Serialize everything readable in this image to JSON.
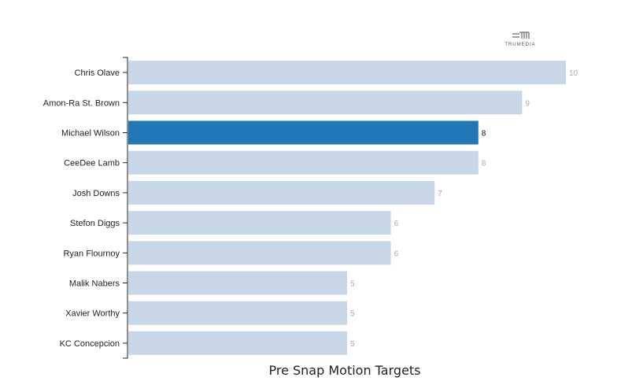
{
  "chart_data": {
    "type": "bar",
    "orientation": "horizontal",
    "title": "",
    "xlabel": "Pre Snap Motion Targets",
    "ylabel": "",
    "categories": [
      "Chris Olave",
      "Amon-Ra St. Brown",
      "Michael Wilson",
      "CeeDee Lamb",
      "Josh Downs",
      "Stefon Diggs",
      "Ryan Flournoy",
      "Malik Nabers",
      "Xavier Worthy",
      "KC Concepcion"
    ],
    "values": [
      10,
      9,
      8,
      8,
      7,
      6,
      6,
      5,
      5,
      5
    ],
    "highlighted": "Michael Wilson",
    "xlim": [
      0,
      10
    ],
    "grid": false,
    "colors": {
      "bar": "#c8d7e8",
      "bar_highlight": "#2176b5",
      "value_label": "#aaaaaa",
      "value_label_highlight": "#111111",
      "axis": "#222222"
    }
  },
  "brand": {
    "logo_icon": "trumedia-logo-icon",
    "name": "TRUMEDIA"
  }
}
